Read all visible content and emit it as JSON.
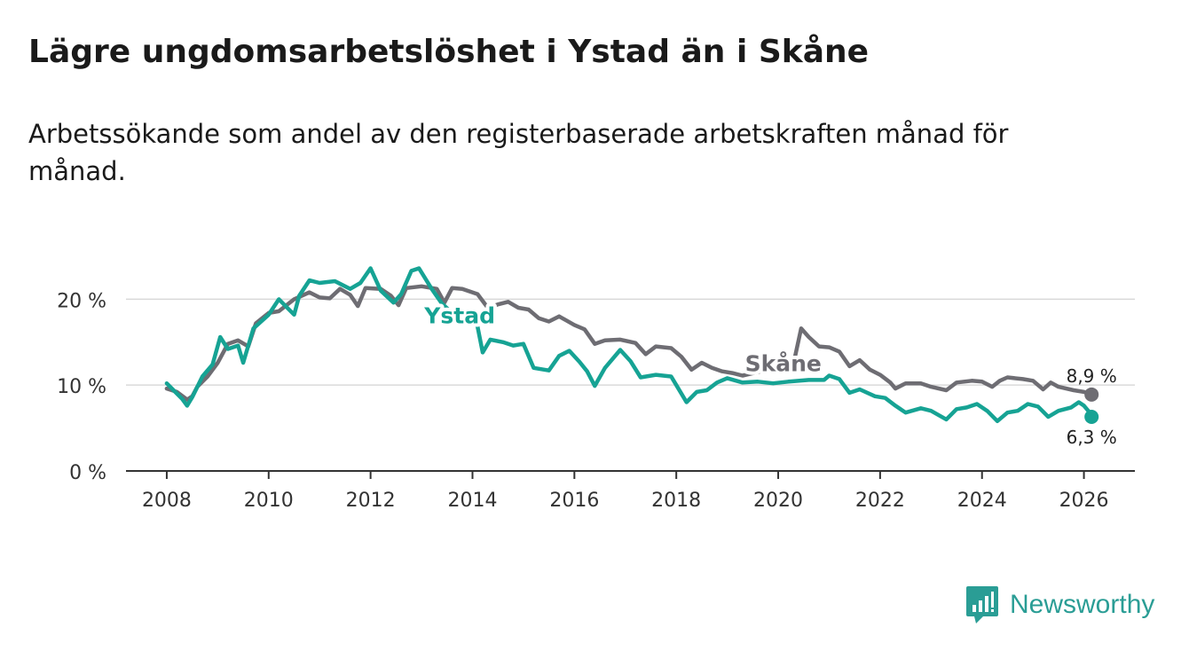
{
  "title": "Lägre ungdomsarbetslöshet i Ystad än i Skåne",
  "subtitle": "Arbetssökande som andel av den registerbaserade arbetskraften månad för månad.",
  "brand": {
    "name": "Newsworthy",
    "logo_icon": "bar-chart-speech-bubble-icon",
    "color": "#2a9d95"
  },
  "chart_data": {
    "type": "line",
    "xlim": [
      2007.2,
      2027.0
    ],
    "ylim": [
      0,
      22
    ],
    "yticks": [
      0,
      10,
      20
    ],
    "ytick_labels": [
      "0 %",
      "10 %",
      "20 %"
    ],
    "xticks": [
      2008,
      2010,
      2012,
      2014,
      2016,
      2018,
      2020,
      2022,
      2024,
      2026
    ],
    "xtick_labels": [
      "2008",
      "2010",
      "2012",
      "2014",
      "2016",
      "2018",
      "2020",
      "2022",
      "2024",
      "2026"
    ],
    "grid": true,
    "series": [
      {
        "name": "Skåne",
        "color": "#6e6d73",
        "end_label": "8,9 %",
        "points": [
          [
            2008.0,
            9.6
          ],
          [
            2008.2,
            9.2
          ],
          [
            2008.4,
            8.3
          ],
          [
            2008.5,
            8.7
          ],
          [
            2008.6,
            9.8
          ],
          [
            2008.8,
            11.0
          ],
          [
            2009.0,
            12.6
          ],
          [
            2009.2,
            14.8
          ],
          [
            2009.4,
            15.2
          ],
          [
            2009.6,
            14.5
          ],
          [
            2009.75,
            17.2
          ],
          [
            2010.0,
            18.4
          ],
          [
            2010.2,
            18.6
          ],
          [
            2010.5,
            20.0
          ],
          [
            2010.8,
            20.8
          ],
          [
            2011.0,
            20.2
          ],
          [
            2011.2,
            20.1
          ],
          [
            2011.4,
            21.2
          ],
          [
            2011.6,
            20.5
          ],
          [
            2011.75,
            19.2
          ],
          [
            2011.9,
            21.3
          ],
          [
            2012.2,
            21.2
          ],
          [
            2012.4,
            20.4
          ],
          [
            2012.55,
            19.3
          ],
          [
            2012.7,
            21.3
          ],
          [
            2013.0,
            21.5
          ],
          [
            2013.3,
            21.2
          ],
          [
            2013.45,
            19.6
          ],
          [
            2013.6,
            21.3
          ],
          [
            2013.8,
            21.2
          ],
          [
            2014.1,
            20.6
          ],
          [
            2014.3,
            19.0
          ],
          [
            2014.5,
            19.4
          ],
          [
            2014.7,
            19.7
          ],
          [
            2014.9,
            19.0
          ],
          [
            2015.1,
            18.8
          ],
          [
            2015.3,
            17.8
          ],
          [
            2015.5,
            17.4
          ],
          [
            2015.7,
            18.0
          ],
          [
            2016.0,
            17.0
          ],
          [
            2016.2,
            16.5
          ],
          [
            2016.4,
            14.8
          ],
          [
            2016.6,
            15.2
          ],
          [
            2016.9,
            15.3
          ],
          [
            2017.2,
            14.9
          ],
          [
            2017.4,
            13.6
          ],
          [
            2017.6,
            14.5
          ],
          [
            2017.9,
            14.3
          ],
          [
            2018.1,
            13.3
          ],
          [
            2018.3,
            11.8
          ],
          [
            2018.5,
            12.6
          ],
          [
            2018.7,
            12.0
          ],
          [
            2018.9,
            11.6
          ],
          [
            2019.1,
            11.4
          ],
          [
            2019.3,
            11.1
          ],
          [
            2020.3,
            12.5
          ],
          [
            2020.45,
            16.6
          ],
          [
            2020.6,
            15.6
          ],
          [
            2020.8,
            14.5
          ],
          [
            2021.0,
            14.4
          ],
          [
            2021.2,
            13.9
          ],
          [
            2021.4,
            12.2
          ],
          [
            2021.6,
            12.9
          ],
          [
            2021.8,
            11.8
          ],
          [
            2022.0,
            11.2
          ],
          [
            2022.2,
            10.3
          ],
          [
            2022.3,
            9.6
          ],
          [
            2022.5,
            10.2
          ],
          [
            2022.8,
            10.2
          ],
          [
            2023.0,
            9.8
          ],
          [
            2023.3,
            9.4
          ],
          [
            2023.5,
            10.3
          ],
          [
            2023.8,
            10.5
          ],
          [
            2024.0,
            10.4
          ],
          [
            2024.2,
            9.8
          ],
          [
            2024.35,
            10.5
          ],
          [
            2024.5,
            10.9
          ],
          [
            2024.8,
            10.7
          ],
          [
            2025.0,
            10.5
          ],
          [
            2025.2,
            9.5
          ],
          [
            2025.35,
            10.3
          ],
          [
            2025.5,
            9.8
          ],
          [
            2025.8,
            9.4
          ],
          [
            2026.0,
            9.2
          ],
          [
            2026.15,
            8.9
          ]
        ]
      },
      {
        "name": "Ystad",
        "color": "#16a394",
        "end_label": "6,3 %",
        "points": [
          [
            2008.0,
            10.2
          ],
          [
            2008.15,
            9.3
          ],
          [
            2008.3,
            8.4
          ],
          [
            2008.4,
            7.6
          ],
          [
            2008.5,
            8.6
          ],
          [
            2008.7,
            11.0
          ],
          [
            2008.9,
            12.4
          ],
          [
            2009.05,
            15.6
          ],
          [
            2009.2,
            14.2
          ],
          [
            2009.4,
            14.6
          ],
          [
            2009.5,
            12.6
          ],
          [
            2009.7,
            16.6
          ],
          [
            2010.0,
            18.2
          ],
          [
            2010.2,
            20.0
          ],
          [
            2010.5,
            18.2
          ],
          [
            2010.6,
            20.4
          ],
          [
            2010.8,
            22.2
          ],
          [
            2011.0,
            21.9
          ],
          [
            2011.3,
            22.1
          ],
          [
            2011.6,
            21.2
          ],
          [
            2011.8,
            21.9
          ],
          [
            2012.0,
            23.6
          ],
          [
            2012.2,
            21.0
          ],
          [
            2012.45,
            19.6
          ],
          [
            2012.6,
            20.6
          ],
          [
            2012.8,
            23.3
          ],
          [
            2012.95,
            23.6
          ],
          [
            2013.2,
            21.2
          ],
          [
            2013.4,
            19.5
          ],
          [
            2013.6,
            18.4
          ],
          [
            2013.9,
            18.6
          ],
          [
            2014.1,
            16.8
          ],
          [
            2014.2,
            13.8
          ],
          [
            2014.35,
            15.3
          ],
          [
            2014.6,
            15.0
          ],
          [
            2014.8,
            14.6
          ],
          [
            2015.0,
            14.8
          ],
          [
            2015.2,
            12.0
          ],
          [
            2015.5,
            11.7
          ],
          [
            2015.7,
            13.4
          ],
          [
            2015.9,
            14.0
          ],
          [
            2016.1,
            12.7
          ],
          [
            2016.25,
            11.6
          ],
          [
            2016.4,
            9.9
          ],
          [
            2016.6,
            12.0
          ],
          [
            2016.9,
            14.1
          ],
          [
            2017.1,
            12.8
          ],
          [
            2017.3,
            10.9
          ],
          [
            2017.6,
            11.2
          ],
          [
            2017.9,
            11.0
          ],
          [
            2018.0,
            10.0
          ],
          [
            2018.2,
            8.0
          ],
          [
            2018.4,
            9.2
          ],
          [
            2018.6,
            9.4
          ],
          [
            2018.8,
            10.3
          ],
          [
            2019.0,
            10.8
          ],
          [
            2019.3,
            10.3
          ],
          [
            2019.6,
            10.4
          ],
          [
            2019.9,
            10.2
          ],
          [
            2020.2,
            10.4
          ],
          [
            2020.6,
            10.6
          ],
          [
            2020.9,
            10.6
          ],
          [
            2021.0,
            11.1
          ],
          [
            2021.2,
            10.7
          ],
          [
            2021.4,
            9.1
          ],
          [
            2021.6,
            9.5
          ],
          [
            2021.9,
            8.7
          ],
          [
            2022.1,
            8.5
          ],
          [
            2022.3,
            7.6
          ],
          [
            2022.5,
            6.8
          ],
          [
            2022.8,
            7.3
          ],
          [
            2023.0,
            7.0
          ],
          [
            2023.3,
            6.0
          ],
          [
            2023.5,
            7.2
          ],
          [
            2023.7,
            7.4
          ],
          [
            2023.9,
            7.8
          ],
          [
            2024.1,
            7.0
          ],
          [
            2024.3,
            5.8
          ],
          [
            2024.5,
            6.8
          ],
          [
            2024.7,
            7.0
          ],
          [
            2024.9,
            7.8
          ],
          [
            2025.1,
            7.5
          ],
          [
            2025.3,
            6.3
          ],
          [
            2025.5,
            7.0
          ],
          [
            2025.75,
            7.4
          ],
          [
            2025.9,
            8.0
          ],
          [
            2026.0,
            7.6
          ],
          [
            2026.1,
            6.9
          ],
          [
            2026.15,
            6.3
          ]
        ]
      }
    ],
    "annotations": [
      {
        "text": "Ystad",
        "series": "Ystad"
      },
      {
        "text": "Skåne",
        "series": "Skåne"
      }
    ]
  }
}
